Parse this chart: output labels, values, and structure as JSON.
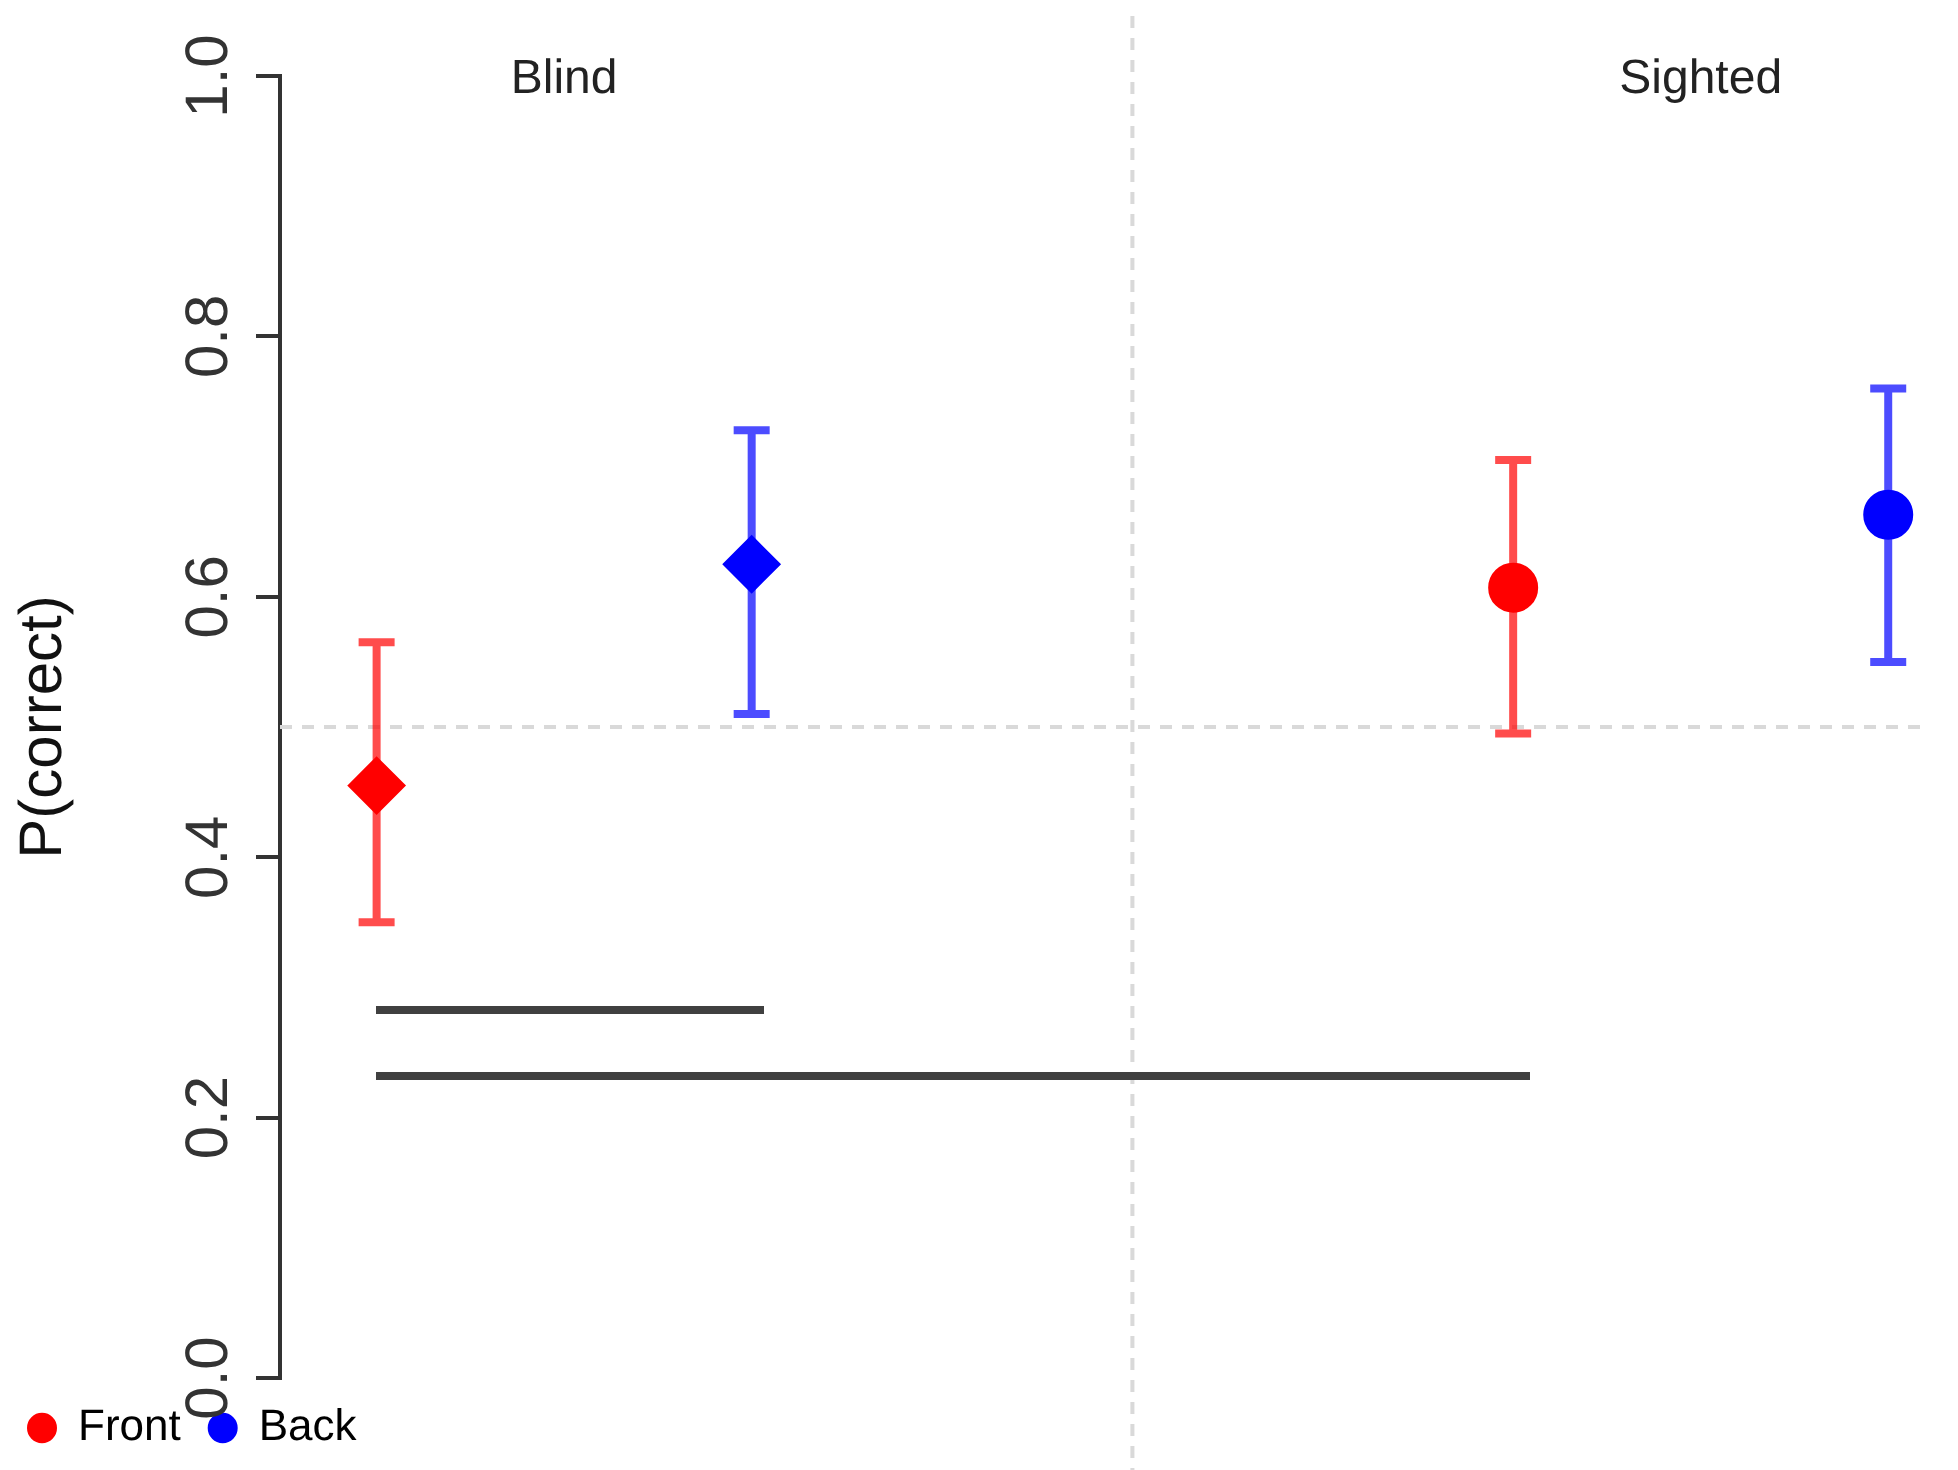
{
  "chart_data": {
    "type": "scatter",
    "ylabel": "P(correct)",
    "categories": [
      "Blind",
      "Sighted"
    ],
    "series": [
      {
        "name": "Front",
        "color": "#ff0000",
        "values": [
          0.455,
          0.607
        ],
        "errors": [
          [
            0.35,
            0.565
          ],
          [
            0.495,
            0.705
          ]
        ],
        "marker": [
          "diamond",
          "circle"
        ]
      },
      {
        "name": "Back",
        "color": "#0000ff",
        "values": [
          0.625,
          0.663
        ],
        "errors": [
          [
            0.51,
            0.728
          ],
          [
            0.55,
            0.76
          ]
        ],
        "marker": [
          "diamond",
          "circle"
        ]
      }
    ],
    "ylim": [
      0,
      1
    ],
    "yticks": [
      {
        "value": 0,
        "label": "0.0"
      },
      {
        "value": 0.2,
        "label": "0.2"
      },
      {
        "value": 0.4,
        "label": "0.4"
      },
      {
        "value": 0.6,
        "label": "0.6"
      },
      {
        "value": 0.8,
        "label": "0.8"
      },
      {
        "value": 1,
        "label": "1.0"
      }
    ],
    "ref_lines": [
      {
        "axis": "y",
        "value": 0.5,
        "color": "#d9d9d9",
        "line_style": "dashed"
      }
    ],
    "grid": "x",
    "legend": "bottom left"
  }
}
